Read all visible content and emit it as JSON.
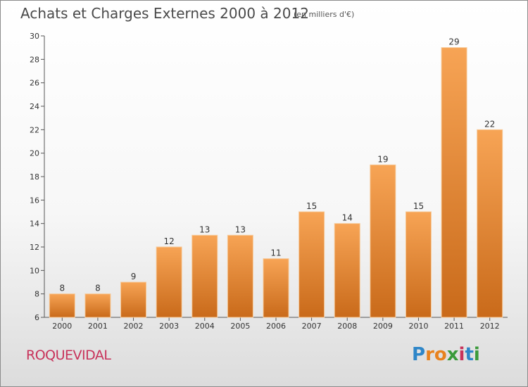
{
  "header": {
    "title": "Achats et Charges Externes 2000 à 2012",
    "unit": "(en milliers d'€)"
  },
  "footer": {
    "commune": "ROQUEVIDAL",
    "logo_letters": [
      "P",
      "r",
      "o",
      "x",
      "i",
      "t",
      "i"
    ],
    "logo_colors": [
      "#2e86c8",
      "#e8821e",
      "#e8821e",
      "#3a9a3a",
      "#c8325a",
      "#2e86c8",
      "#3a9a3a"
    ]
  },
  "chart_data": {
    "type": "bar",
    "title": "Achats et Charges Externes 2000 à 2012",
    "categories": [
      "2000",
      "2001",
      "2002",
      "2003",
      "2004",
      "2005",
      "2006",
      "2007",
      "2008",
      "2009",
      "2010",
      "2011",
      "2012"
    ],
    "values": [
      8,
      8,
      9,
      12,
      13,
      13,
      11,
      15,
      14,
      19,
      15,
      29,
      22
    ],
    "ylim": [
      6,
      30
    ],
    "yticks": [
      6,
      8,
      10,
      12,
      14,
      16,
      18,
      20,
      22,
      24,
      26,
      28,
      30
    ],
    "grid": false,
    "bar_color_top": "#f7a455",
    "bar_color_bottom": "#c96a1a"
  }
}
